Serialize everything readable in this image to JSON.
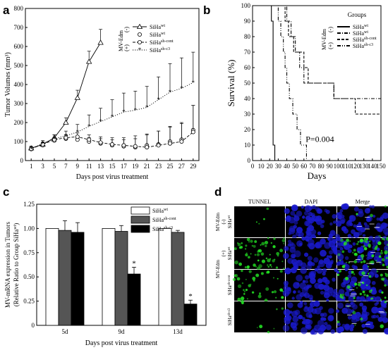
{
  "panels": {
    "a": "a",
    "b": "b",
    "c": "c",
    "d": "d"
  },
  "chart_data": [
    {
      "id": "a",
      "type": "line",
      "title": "",
      "xlabel": "Days post virus treatment",
      "ylabel": "Tumor Volumes (mm³)",
      "x": [
        1,
        3,
        5,
        7,
        9,
        11,
        13,
        15,
        17,
        19,
        21,
        23,
        25,
        27,
        29
      ],
      "xlim": [
        0,
        30
      ],
      "ylim": [
        0,
        800
      ],
      "yticks": [
        0,
        100,
        200,
        300,
        400,
        500,
        600,
        700,
        800
      ],
      "legend_title": "MV-Edm",
      "legend_groups": [
        "(-)",
        "(+)"
      ],
      "series": [
        {
          "name": "SiHa",
          "sup": "wt",
          "group": "(-)",
          "marker": "triangle",
          "dash": "solid",
          "x": [
            1,
            3,
            5,
            7,
            9,
            11,
            13
          ],
          "values": [
            65,
            85,
            120,
            200,
            330,
            520,
            620
          ],
          "err": [
            10,
            12,
            15,
            25,
            40,
            55,
            70
          ]
        },
        {
          "name": "SiHa",
          "sup": "wt",
          "group": "(+)",
          "marker": "circle",
          "dash": "none",
          "x": [
            1,
            3,
            5,
            7,
            9,
            11,
            13,
            15,
            17,
            19,
            21,
            23,
            25,
            27,
            29
          ],
          "values": [
            60,
            80,
            105,
            115,
            110,
            100,
            90,
            80,
            75,
            70,
            80,
            85,
            100,
            110,
            160
          ],
          "err": [
            8,
            10,
            12,
            15,
            15,
            20,
            25,
            30,
            35,
            45,
            60,
            70,
            80,
            90,
            130
          ]
        },
        {
          "name": "SiHa",
          "sup": "sh-cont",
          "group": "(+)",
          "marker": "circle-open",
          "dash": "dashed",
          "x": [
            1,
            3,
            5,
            7,
            9,
            11,
            13,
            15,
            17,
            19,
            21,
            23,
            25,
            27,
            29
          ],
          "values": [
            62,
            85,
            110,
            120,
            125,
            110,
            95,
            85,
            80,
            75,
            70,
            80,
            90,
            100,
            150
          ],
          "err": [
            8,
            10,
            12,
            15,
            20,
            25,
            30,
            35,
            40,
            55,
            65,
            75,
            85,
            95,
            140
          ]
        },
        {
          "name": "SiHa",
          "sup": "sh-c3",
          "group": "(+)",
          "marker": "star",
          "dash": "dotted",
          "x": [
            1,
            3,
            5,
            7,
            9,
            11,
            13,
            15,
            17,
            19,
            21,
            23,
            25,
            27,
            29
          ],
          "values": [
            62,
            90,
            115,
            130,
            150,
            180,
            205,
            230,
            255,
            265,
            280,
            320,
            360,
            380,
            410
          ],
          "err": [
            10,
            15,
            20,
            25,
            40,
            60,
            70,
            90,
            100,
            100,
            110,
            120,
            150,
            160,
            160
          ]
        }
      ]
    },
    {
      "id": "b",
      "type": "line",
      "title": "",
      "xlabel": "Days",
      "ylabel": "Survival (%)",
      "xlim": [
        0,
        150
      ],
      "ylim": [
        0,
        100
      ],
      "xticks": [
        0,
        10,
        20,
        30,
        40,
        50,
        60,
        70,
        80,
        90,
        100,
        110,
        120,
        130,
        140,
        150
      ],
      "yticks": [
        0,
        10,
        20,
        30,
        40,
        50,
        60,
        70,
        80,
        90,
        100
      ],
      "annotation": "P=0.004",
      "legend_title": "Groups",
      "legend_groups": [
        "(-)",
        "(+)"
      ],
      "legend_side_label": "MV-Edm",
      "series": [
        {
          "name": "SiHa",
          "sup": "wt",
          "group": "(-)",
          "dash": "solid",
          "steps": [
            [
              0,
              100
            ],
            [
              22,
              100
            ],
            [
              22,
              90
            ],
            [
              24,
              90
            ],
            [
              24,
              10
            ],
            [
              26,
              10
            ],
            [
              26,
              0
            ],
            [
              28,
              0
            ]
          ]
        },
        {
          "name": "SiHa",
          "sup": "wt",
          "group": "(+)",
          "dash": "dashdot",
          "steps": [
            [
              0,
              100
            ],
            [
              40,
              100
            ],
            [
              40,
              90
            ],
            [
              45,
              90
            ],
            [
              45,
              80
            ],
            [
              50,
              80
            ],
            [
              50,
              70
            ],
            [
              55,
              70
            ],
            [
              55,
              60
            ],
            [
              60,
              60
            ],
            [
              60,
              50
            ],
            [
              95,
              50
            ],
            [
              95,
              40
            ],
            [
              150,
              40
            ]
          ]
        },
        {
          "name": "SiHa",
          "sup": "sh-cont",
          "group": "(+)",
          "dash": "dashed",
          "steps": [
            [
              0,
              100
            ],
            [
              38,
              100
            ],
            [
              38,
              90
            ],
            [
              42,
              90
            ],
            [
              42,
              80
            ],
            [
              48,
              80
            ],
            [
              48,
              70
            ],
            [
              60,
              70
            ],
            [
              60,
              60
            ],
            [
              65,
              60
            ],
            [
              65,
              50
            ],
            [
              95,
              50
            ],
            [
              95,
              40
            ],
            [
              120,
              40
            ],
            [
              120,
              30
            ],
            [
              150,
              30
            ]
          ]
        },
        {
          "name": "SiHa",
          "sup": "sh-c3",
          "group": "(+)",
          "dash": "dashdotdot",
          "steps": [
            [
              0,
              100
            ],
            [
              30,
              100
            ],
            [
              30,
              90
            ],
            [
              33,
              90
            ],
            [
              33,
              80
            ],
            [
              36,
              80
            ],
            [
              36,
              70
            ],
            [
              38,
              70
            ],
            [
              38,
              60
            ],
            [
              40,
              60
            ],
            [
              40,
              50
            ],
            [
              43,
              50
            ],
            [
              43,
              40
            ],
            [
              47,
              40
            ],
            [
              47,
              30
            ],
            [
              52,
              30
            ],
            [
              52,
              20
            ],
            [
              56,
              20
            ],
            [
              56,
              10
            ],
            [
              63,
              10
            ],
            [
              63,
              0
            ],
            [
              66,
              0
            ]
          ]
        }
      ]
    },
    {
      "id": "c",
      "type": "bar",
      "title": "",
      "xlabel": "Days post virus treatment",
      "ylabel": "MV-mRNA expression in Tumors",
      "ylabel2": "(Relative Ratio to Group SiHa",
      "ylabel2_sup": "wt",
      "ylabel2_end": ")",
      "categories": [
        "5d",
        "9d",
        "13d"
      ],
      "ylim": [
        0,
        1.25
      ],
      "yticks": [
        0,
        0.25,
        0.5,
        0.75,
        1.0,
        1.25
      ],
      "ytick_labels": [
        "0",
        "0.25",
        "0.50",
        "0.75",
        "1.00",
        "1.25"
      ],
      "series": [
        {
          "name": "SiHa",
          "sup": "wt",
          "color": "#ffffff",
          "values": [
            1.0,
            1.0,
            1.0
          ],
          "err": [
            0,
            0,
            0
          ]
        },
        {
          "name": "SiHa",
          "sup": "sh-cont",
          "color": "#555555",
          "values": [
            0.98,
            0.97,
            0.96
          ],
          "err": [
            0.1,
            0.06,
            0.02
          ]
        },
        {
          "name": "SiHa",
          "sup": "sh-c3",
          "color": "#000000",
          "values": [
            0.96,
            0.53,
            0.22
          ],
          "err": [
            0.1,
            0.07,
            0.04
          ]
        }
      ],
      "significance": [
        {
          "category": "9d",
          "series": 2,
          "mark": "*"
        },
        {
          "category": "13d",
          "series": 2,
          "mark": "*"
        }
      ]
    }
  ],
  "panel_d": {
    "columns": [
      "TUNNEL",
      "DAPI",
      "Merge"
    ],
    "rows": [
      {
        "group": "MV-Edm",
        "sign": "(-)",
        "label": "SiHa",
        "sup": "wt",
        "green": 0.05
      },
      {
        "group": "MV-Edm",
        "sign": "(+)",
        "label": "SiHa",
        "sup": "wt",
        "green": 0.9
      },
      {
        "group": "",
        "sign": "",
        "label": "SiHa",
        "sup": "sh-cont",
        "green": 0.55
      },
      {
        "group": "",
        "sign": "",
        "label": "SiHa",
        "sup": "sh-c3",
        "green": 0.12
      }
    ],
    "colors": {
      "dapi": "#1a1acc",
      "tunnel": "#22dd22",
      "bg": "#000000"
    }
  }
}
